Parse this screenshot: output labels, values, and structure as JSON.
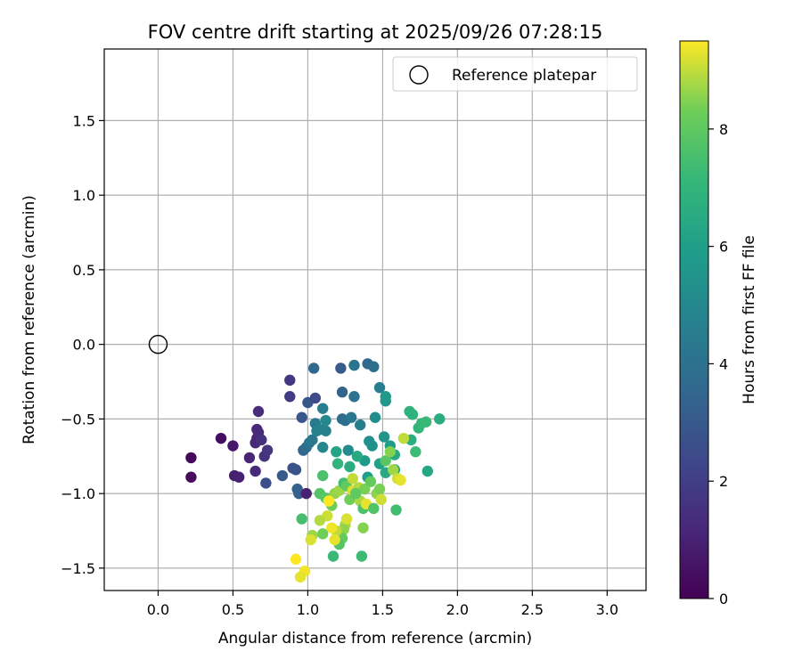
{
  "chart_data": {
    "type": "scatter",
    "title": "FOV centre drift starting at 2025/09/26 07:28:15",
    "xlabel": "Angular distance from reference (arcmin)",
    "ylabel": "Rotation from reference (arcmin)",
    "xlim": [
      -0.36,
      3.26
    ],
    "ylim": [
      -1.65,
      1.98
    ],
    "xticks": [
      "0.0",
      "0.5",
      "1.0",
      "1.5",
      "2.0",
      "2.5",
      "3.0"
    ],
    "xtick_values": [
      0,
      0.5,
      1.0,
      1.5,
      2.0,
      2.5,
      3.0
    ],
    "yticks": [
      "1.5",
      "1.0",
      "0.5",
      "0.0",
      "−0.5",
      "−1.0",
      "−1.5"
    ],
    "ytick_values": [
      1.5,
      1.0,
      0.5,
      0.0,
      -0.5,
      -1.0,
      -1.5
    ],
    "grid": true,
    "legend": {
      "position": "top-right",
      "label": "Reference platepar"
    },
    "reference_point": {
      "x": 0.0,
      "y": 0.0
    },
    "colorbar": {
      "label": "Hours from first FF file",
      "colormap": "viridis",
      "range": [
        0,
        9.5
      ],
      "ticks": [
        "0",
        "2",
        "4",
        "6",
        "8"
      ],
      "tick_values": [
        0,
        2,
        4,
        6,
        8
      ]
    },
    "points_xyt": [
      [
        0.22,
        -0.76,
        0.2
      ],
      [
        0.22,
        -0.89,
        0.3
      ],
      [
        0.42,
        -0.63,
        0.4
      ],
      [
        0.5,
        -0.68,
        0.7
      ],
      [
        0.51,
        -0.88,
        0.9
      ],
      [
        0.54,
        -0.89,
        1.0
      ],
      [
        0.61,
        -0.76,
        1.1
      ],
      [
        0.65,
        -0.66,
        1.2
      ],
      [
        0.65,
        -0.85,
        1.3
      ],
      [
        0.66,
        -0.57,
        1.2
      ],
      [
        0.66,
        -0.63,
        1.1
      ],
      [
        0.67,
        -0.45,
        1.4
      ],
      [
        0.67,
        -0.59,
        1.3
      ],
      [
        0.69,
        -0.64,
        1.5
      ],
      [
        0.71,
        -0.75,
        1.6
      ],
      [
        0.73,
        -0.71,
        1.7
      ],
      [
        0.72,
        -0.93,
        2.6
      ],
      [
        0.83,
        -0.88,
        3.0
      ],
      [
        0.88,
        -0.24,
        1.8
      ],
      [
        0.88,
        -0.35,
        1.9
      ],
      [
        0.9,
        -0.83,
        2.7
      ],
      [
        0.92,
        -0.84,
        2.8
      ],
      [
        0.93,
        -0.97,
        3.2
      ],
      [
        0.94,
        -1.0,
        3.3
      ],
      [
        0.96,
        -0.49,
        2.9
      ],
      [
        0.97,
        -0.71,
        3.5
      ],
      [
        0.99,
        -0.69,
        3.8
      ],
      [
        0.99,
        -1.0,
        1.0
      ],
      [
        1.0,
        -0.39,
        2.9
      ],
      [
        1.01,
        -0.66,
        4.2
      ],
      [
        1.03,
        -0.64,
        4.3
      ],
      [
        1.04,
        -0.16,
        3.6
      ],
      [
        1.05,
        -0.36,
        2.4
      ],
      [
        1.05,
        -0.53,
        4.4
      ],
      [
        1.06,
        -0.58,
        4.6
      ],
      [
        1.08,
        -0.57,
        4.8
      ],
      [
        1.1,
        -0.69,
        4.9
      ],
      [
        1.1,
        -0.43,
        4.5
      ],
      [
        1.12,
        -0.51,
        5.0
      ],
      [
        1.12,
        -0.58,
        4.7
      ],
      [
        1.22,
        -0.16,
        3.1
      ],
      [
        1.23,
        -0.32,
        3.4
      ],
      [
        1.23,
        -0.5,
        3.7
      ],
      [
        1.25,
        -0.51,
        3.9
      ],
      [
        1.27,
        -0.71,
        5.1
      ],
      [
        1.29,
        -0.49,
        4.3
      ],
      [
        1.31,
        -0.14,
        4.1
      ],
      [
        1.31,
        -0.35,
        4.0
      ],
      [
        1.35,
        -0.54,
        4.6
      ],
      [
        1.4,
        -0.13,
        3.6
      ],
      [
        1.41,
        -0.65,
        5.3
      ],
      [
        1.43,
        -0.68,
        5.4
      ],
      [
        1.44,
        -0.15,
        3.9
      ],
      [
        1.45,
        -0.49,
        5.2
      ],
      [
        1.48,
        -0.29,
        4.5
      ],
      [
        1.51,
        -0.62,
        5.5
      ],
      [
        1.52,
        -0.38,
        5.6
      ],
      [
        1.52,
        -0.35,
        5.7
      ],
      [
        1.55,
        -0.68,
        5.9
      ],
      [
        1.58,
        -0.84,
        6.0
      ],
      [
        1.68,
        -0.45,
        6.8
      ],
      [
        1.7,
        -0.47,
        6.9
      ],
      [
        1.74,
        -0.56,
        7.0
      ],
      [
        1.76,
        -0.53,
        7.1
      ],
      [
        1.79,
        -0.52,
        7.2
      ],
      [
        1.8,
        -0.85,
        6.3
      ],
      [
        1.88,
        -0.5,
        6.6
      ],
      [
        1.72,
        -0.72,
        7.3
      ],
      [
        1.69,
        -0.64,
        6.7
      ],
      [
        1.58,
        -0.74,
        6.5
      ],
      [
        1.52,
        -0.86,
        6.4
      ],
      [
        1.48,
        -0.8,
        6.1
      ],
      [
        1.4,
        -0.89,
        6.0
      ],
      [
        1.38,
        -0.78,
        5.8
      ],
      [
        1.33,
        -0.75,
        6.4
      ],
      [
        1.28,
        -0.82,
        6.6
      ],
      [
        1.2,
        -0.8,
        7.0
      ],
      [
        1.19,
        -0.72,
        6.2
      ],
      [
        1.1,
        -0.88,
        7.6
      ],
      [
        1.08,
        -1.0,
        7.8
      ],
      [
        1.12,
        -1.03,
        7.9
      ],
      [
        1.16,
        -1.08,
        8.2
      ],
      [
        1.18,
        -1.0,
        8.6
      ],
      [
        1.21,
        -0.98,
        8.7
      ],
      [
        1.24,
        -0.93,
        7.5
      ],
      [
        1.26,
        -0.95,
        8.1
      ],
      [
        1.28,
        -1.04,
        8.3
      ],
      [
        1.3,
        -0.9,
        9.0
      ],
      [
        1.3,
        -0.98,
        9.2
      ],
      [
        1.34,
        -0.96,
        8.9
      ],
      [
        1.35,
        -1.05,
        8.8
      ],
      [
        1.37,
        -1.1,
        7.6
      ],
      [
        1.38,
        -0.97,
        8.4
      ],
      [
        1.39,
        -1.07,
        9.3
      ],
      [
        1.42,
        -0.92,
        8.1
      ],
      [
        1.44,
        -1.1,
        7.7
      ],
      [
        1.46,
        -1.0,
        8.6
      ],
      [
        1.48,
        -0.97,
        8.4
      ],
      [
        1.49,
        -1.04,
        9.1
      ],
      [
        1.52,
        -0.78,
        7.9
      ],
      [
        1.55,
        -0.72,
        8.5
      ],
      [
        1.57,
        -0.84,
        8.7
      ],
      [
        1.6,
        -0.9,
        9.1
      ],
      [
        1.62,
        -0.91,
        9.3
      ],
      [
        1.64,
        -0.63,
        9.0
      ],
      [
        1.59,
        -1.11,
        7.4
      ],
      [
        1.37,
        -1.23,
        8.5
      ],
      [
        1.36,
        -1.42,
        7.3
      ],
      [
        1.25,
        -1.21,
        8.8
      ],
      [
        1.24,
        -1.24,
        8.6
      ],
      [
        1.23,
        -1.3,
        8.1
      ],
      [
        1.21,
        -1.34,
        7.8
      ],
      [
        1.19,
        -1.25,
        9.0
      ],
      [
        1.18,
        -1.31,
        9.3
      ],
      [
        1.17,
        -1.42,
        7.2
      ],
      [
        1.16,
        -1.23,
        9.4
      ],
      [
        1.13,
        -1.15,
        9.1
      ],
      [
        1.1,
        -1.27,
        8.3
      ],
      [
        1.08,
        -1.18,
        8.9
      ],
      [
        1.03,
        -1.28,
        8.7
      ],
      [
        1.02,
        -1.31,
        9.2
      ],
      [
        0.98,
        -1.52,
        9.4
      ],
      [
        0.95,
        -1.56,
        9.3
      ],
      [
        0.92,
        -1.44,
        9.5
      ],
      [
        0.96,
        -1.17,
        7.5
      ],
      [
        1.14,
        -1.05,
        9.5
      ],
      [
        1.26,
        -1.17,
        9.2
      ],
      [
        1.32,
        -1.0,
        8.0
      ]
    ]
  }
}
